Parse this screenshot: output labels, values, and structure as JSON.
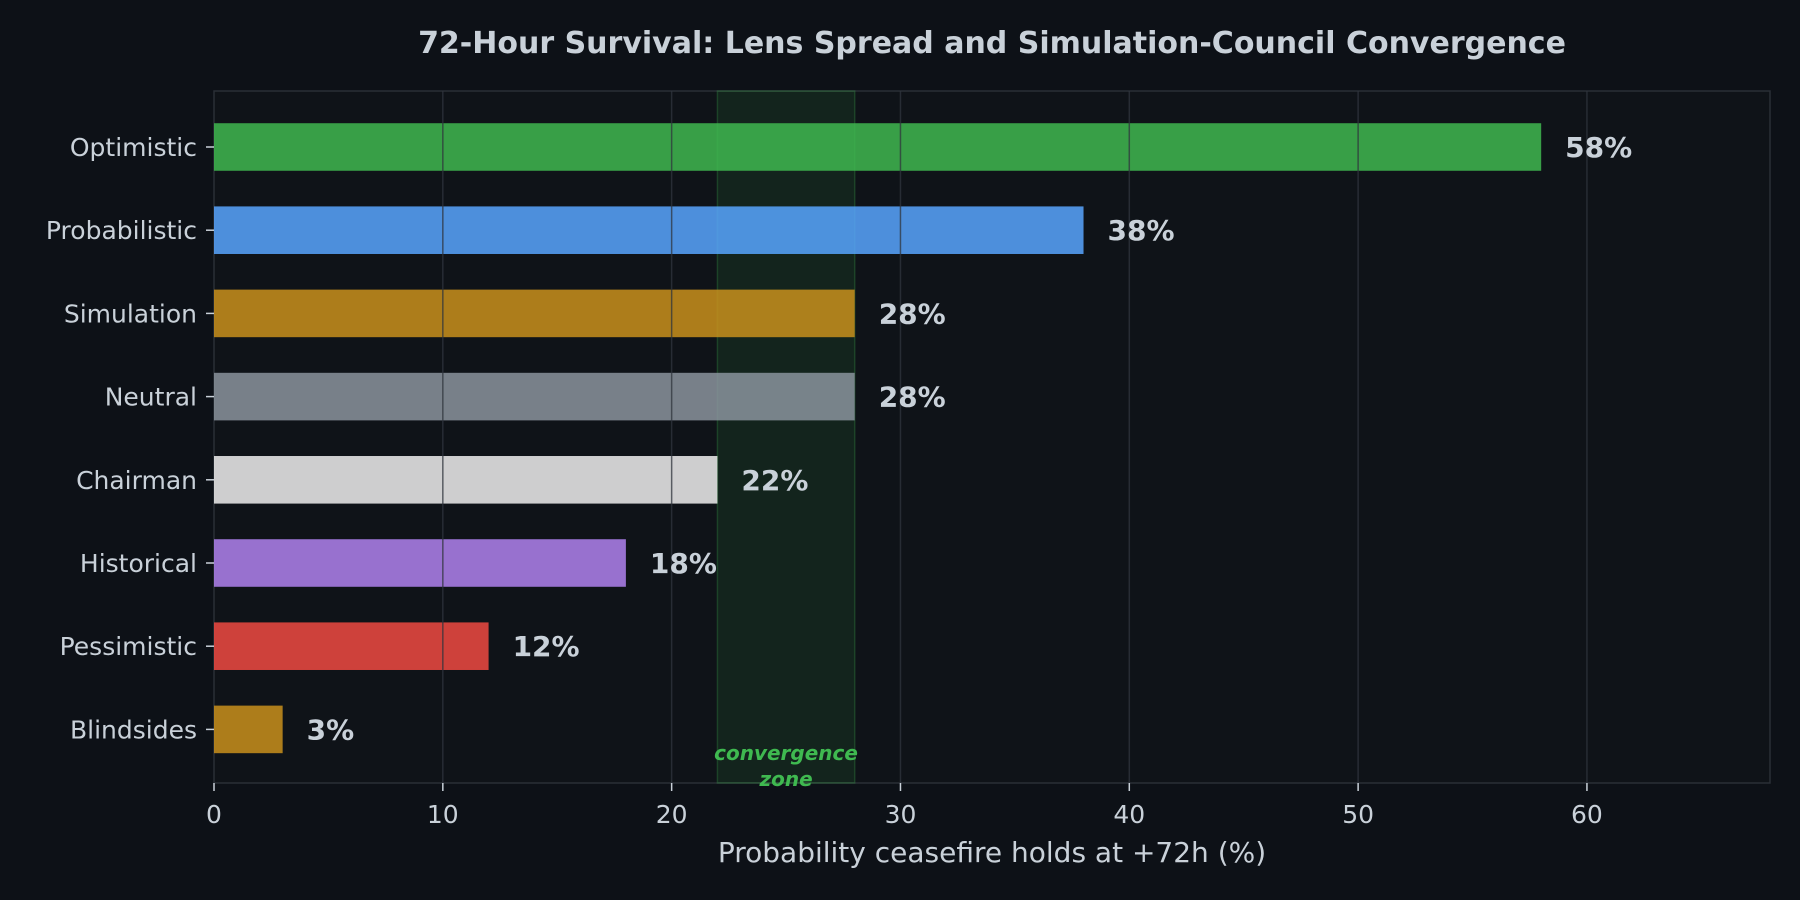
{
  "chart_data": {
    "type": "bar",
    "orientation": "horizontal",
    "title": "72-Hour Survival: Lens Spread and Simulation-Council Convergence",
    "xlabel": "Probability ceasefire holds at +72h (%)",
    "ylabel": "",
    "xlim": [
      0,
      68
    ],
    "xticks": [
      0,
      10,
      20,
      30,
      40,
      50,
      60
    ],
    "grid": true,
    "categories": [
      "Optimistic",
      "Probabilistic",
      "Simulation",
      "Neutral",
      "Chairman",
      "Historical",
      "Pessimistic",
      "Blindsides"
    ],
    "values": [
      58,
      38,
      28,
      28,
      22,
      18,
      12,
      3
    ],
    "value_labels": [
      "58%",
      "38%",
      "28%",
      "28%",
      "22%",
      "18%",
      "12%",
      "3%"
    ],
    "colors": [
      "#3fb950",
      "#58a6ff",
      "#c9901c",
      "#8b949e",
      "#f0f0f0",
      "#b083f0",
      "#f04a42",
      "#c9901c"
    ],
    "annotations": [
      {
        "type": "band",
        "x_range": [
          22,
          28
        ],
        "label_lines": [
          "convergence",
          "zone"
        ],
        "color": "#3fb950"
      }
    ]
  }
}
